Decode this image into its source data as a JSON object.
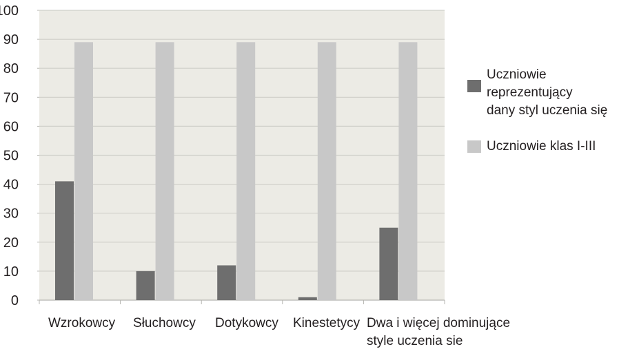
{
  "chart_data": {
    "type": "bar",
    "categories": [
      [
        "Wzrokowcy"
      ],
      [
        "Słuchowcy"
      ],
      [
        "Dotykowcy"
      ],
      [
        "Kinestetycy"
      ],
      [
        "Dwa i więcej dominujące",
        "style uczenia sie"
      ]
    ],
    "series": [
      {
        "name": "Uczniowie reprezentujący dany styl uczenia się",
        "values": [
          41,
          10,
          12,
          1,
          25
        ],
        "color": "#6e6e6e"
      },
      {
        "name": "Uczniowie klas I-III",
        "values": [
          89,
          89,
          89,
          89,
          89
        ],
        "color": "#c8c8c8"
      }
    ],
    "ylim": [
      0,
      100
    ],
    "yticks": [
      0,
      10,
      20,
      30,
      40,
      50,
      60,
      70,
      80,
      90,
      100
    ],
    "yticks_text": [
      "0",
      "10",
      "20",
      "30",
      "40",
      "50",
      "60",
      "70",
      "80",
      "90",
      "100"
    ],
    "grid": true,
    "plot_background": "#ecebe5",
    "gridline_color": "#cfcfc9",
    "legend_position": "right",
    "legend": {
      "items": [
        {
          "lines": [
            "Uczniowie reprezentujący",
            "dany styl uczenia się"
          ],
          "color": "#6e6e6e"
        },
        {
          "lines": [
            "Uczniowie klas I-III"
          ],
          "color": "#c8c8c8"
        }
      ]
    }
  }
}
